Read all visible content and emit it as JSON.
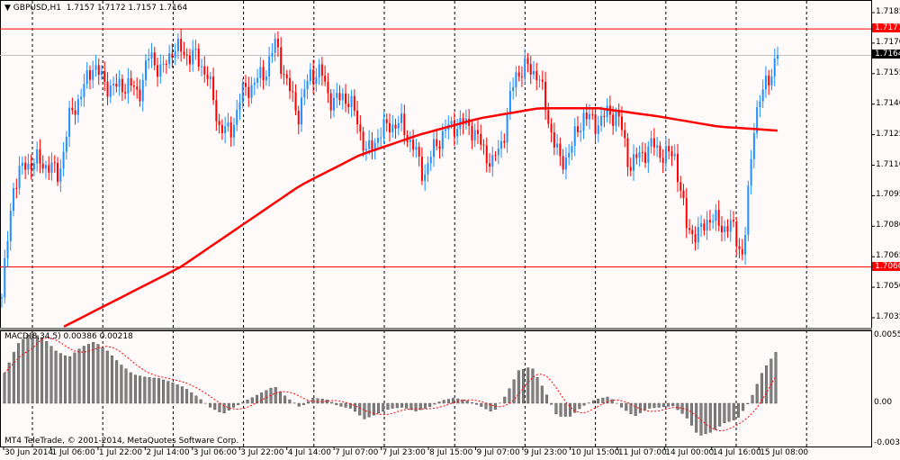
{
  "header": {
    "symbol": "GBPUSD,H1",
    "ohlc": "1.7157 1.7172 1.7157 1.7164"
  },
  "macd": {
    "label": "MACD(8,34,5) 0.00386 0.00218"
  },
  "footer": {
    "copyright": "MT4 TeleTrade, © 2001-2014, MetaQuotes Software Corp."
  },
  "colors": {
    "bull": "#1e90ff",
    "bear": "#ff0000",
    "ma": "#ff0000",
    "hist": "#808080",
    "signal": "#ff0000",
    "background": "#fffafa"
  },
  "price_axis": [
    "1.7185",
    "1.7170",
    "1.7155",
    "1.7140",
    "1.7125",
    "1.7110",
    "1.7095",
    "1.7080",
    "1.7065",
    "1.7050",
    "1.7035"
  ],
  "macd_axis": [
    "0.00551",
    "0.00",
    "-0.00313"
  ],
  "levels": [
    {
      "value": "1.7177",
      "color": "#ff0000"
    },
    {
      "value": "1.7060",
      "color": "#ff0000"
    }
  ],
  "bid": "1.7164",
  "time_axis": [
    "30 Jun 2014",
    "1 Jul 06:00",
    "1 Jul 22:00",
    "2 Jul 14:00",
    "3 Jul 06:00",
    "3 Jul 22:00",
    "4 Jul 14:00",
    "7 Jul 07:00",
    "7 Jul 23:00",
    "8 Jul 15:00",
    "9 Jul 07:00",
    "9 Jul 23:00",
    "10 Jul 15:00",
    "11 Jul 07:00",
    "14 Jul 00:00",
    "14 Jul 16:00",
    "15 Jul 08:00"
  ],
  "chart_data": {
    "type": "candlestick",
    "price_range": [
      1.7028,
      1.7191
    ],
    "closes": [
      1.7045,
      1.71,
      1.711,
      1.7112,
      1.711,
      1.7105,
      1.7135,
      1.7145,
      1.716,
      1.715,
      1.7148,
      1.715,
      1.7145,
      1.7165,
      1.7155,
      1.7168,
      1.7165,
      1.7163,
      1.7155,
      1.713,
      1.7125,
      1.7145,
      1.715,
      1.7155,
      1.717,
      1.715,
      1.7135,
      1.7155,
      1.7155,
      1.714,
      1.7145,
      1.7135,
      1.7115,
      1.7125,
      1.713,
      1.713,
      1.712,
      1.7105,
      1.712,
      1.7128,
      1.713,
      1.713,
      1.712,
      1.711,
      1.7125,
      1.7155,
      1.7158,
      1.7155,
      1.713,
      1.711,
      1.712,
      1.7135,
      1.713,
      1.7135,
      1.7135,
      1.711,
      1.7115,
      1.712,
      1.7115,
      1.7115,
      1.708,
      1.7075,
      1.7085,
      1.708,
      1.708,
      1.7065,
      1.7135,
      1.715,
      1.7164
    ],
    "moving_average": [
      1.7022,
      1.703,
      1.7045,
      1.706,
      1.708,
      1.71,
      1.7115,
      1.7125,
      1.7133,
      1.7138,
      1.7138,
      1.7134,
      1.7129,
      1.7127
    ],
    "macd_range": [
      -0.00313,
      0.00551
    ],
    "macd_histogram": [
      0.0023,
      0.0045,
      0.0054,
      0.005,
      0.004,
      0.0035,
      0.0043,
      0.0047,
      0.004,
      0.003,
      0.0022,
      0.002,
      0.0019,
      0.0016,
      0.0012,
      0.0005,
      -0.0003,
      -0.0008,
      -0.0002,
      0.0003,
      0.0008,
      0.0013,
      0.0004,
      -0.0003,
      0.0004,
      0.0003,
      -0.0002,
      -0.0004,
      -0.0012,
      -0.0008,
      -0.0004,
      -0.0003,
      -0.0006,
      -0.0003,
      0.0002,
      0.0004,
      0.0002,
      -0.0002,
      -0.0007,
      0.0006,
      0.0025,
      0.0028,
      0.001,
      -0.001,
      -0.001,
      -0.0002,
      0.0003,
      0.0005,
      -0.0003,
      -0.001,
      -0.0004,
      -0.0003,
      -0.0002,
      -0.001,
      -0.0025,
      -0.0022,
      -0.0015,
      -0.0012,
      0.0002,
      0.0025,
      0.0039
    ]
  }
}
